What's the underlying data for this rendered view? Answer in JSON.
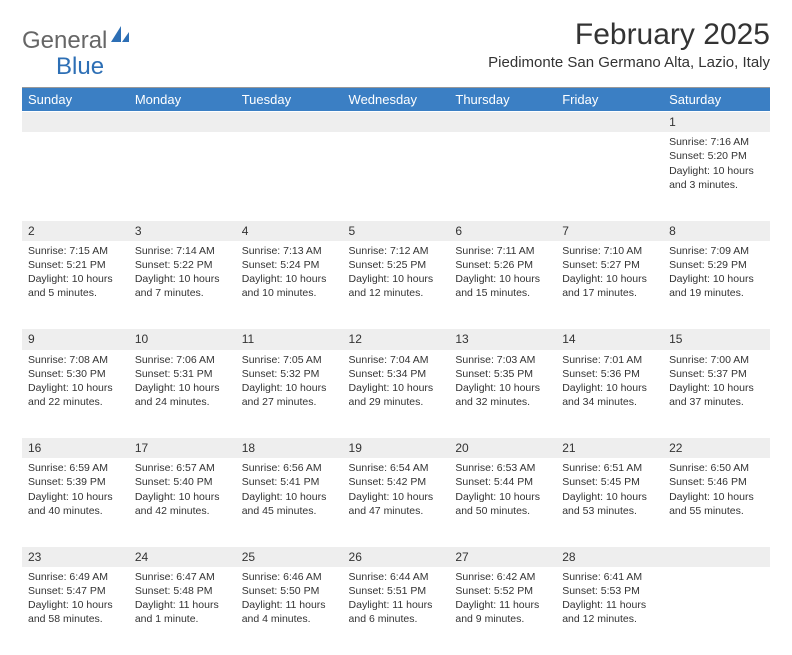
{
  "logo": {
    "text1": "General",
    "text2": "Blue"
  },
  "title": "February 2025",
  "location": "Piedimonte San Germano Alta, Lazio, Italy",
  "colors": {
    "header_bg": "#3b7fc4",
    "header_text": "#ffffff",
    "daynum_bg": "#eeeeee",
    "text": "#333333",
    "logo_gray": "#666666",
    "logo_blue": "#2d6fb5"
  },
  "weekdays": [
    "Sunday",
    "Monday",
    "Tuesday",
    "Wednesday",
    "Thursday",
    "Friday",
    "Saturday"
  ],
  "weeks": [
    [
      null,
      null,
      null,
      null,
      null,
      null,
      {
        "n": "1",
        "sr": "Sunrise: 7:16 AM",
        "ss": "Sunset: 5:20 PM",
        "d1": "Daylight: 10 hours",
        "d2": "and 3 minutes."
      }
    ],
    [
      {
        "n": "2",
        "sr": "Sunrise: 7:15 AM",
        "ss": "Sunset: 5:21 PM",
        "d1": "Daylight: 10 hours",
        "d2": "and 5 minutes."
      },
      {
        "n": "3",
        "sr": "Sunrise: 7:14 AM",
        "ss": "Sunset: 5:22 PM",
        "d1": "Daylight: 10 hours",
        "d2": "and 7 minutes."
      },
      {
        "n": "4",
        "sr": "Sunrise: 7:13 AM",
        "ss": "Sunset: 5:24 PM",
        "d1": "Daylight: 10 hours",
        "d2": "and 10 minutes."
      },
      {
        "n": "5",
        "sr": "Sunrise: 7:12 AM",
        "ss": "Sunset: 5:25 PM",
        "d1": "Daylight: 10 hours",
        "d2": "and 12 minutes."
      },
      {
        "n": "6",
        "sr": "Sunrise: 7:11 AM",
        "ss": "Sunset: 5:26 PM",
        "d1": "Daylight: 10 hours",
        "d2": "and 15 minutes."
      },
      {
        "n": "7",
        "sr": "Sunrise: 7:10 AM",
        "ss": "Sunset: 5:27 PM",
        "d1": "Daylight: 10 hours",
        "d2": "and 17 minutes."
      },
      {
        "n": "8",
        "sr": "Sunrise: 7:09 AM",
        "ss": "Sunset: 5:29 PM",
        "d1": "Daylight: 10 hours",
        "d2": "and 19 minutes."
      }
    ],
    [
      {
        "n": "9",
        "sr": "Sunrise: 7:08 AM",
        "ss": "Sunset: 5:30 PM",
        "d1": "Daylight: 10 hours",
        "d2": "and 22 minutes."
      },
      {
        "n": "10",
        "sr": "Sunrise: 7:06 AM",
        "ss": "Sunset: 5:31 PM",
        "d1": "Daylight: 10 hours",
        "d2": "and 24 minutes."
      },
      {
        "n": "11",
        "sr": "Sunrise: 7:05 AM",
        "ss": "Sunset: 5:32 PM",
        "d1": "Daylight: 10 hours",
        "d2": "and 27 minutes."
      },
      {
        "n": "12",
        "sr": "Sunrise: 7:04 AM",
        "ss": "Sunset: 5:34 PM",
        "d1": "Daylight: 10 hours",
        "d2": "and 29 minutes."
      },
      {
        "n": "13",
        "sr": "Sunrise: 7:03 AM",
        "ss": "Sunset: 5:35 PM",
        "d1": "Daylight: 10 hours",
        "d2": "and 32 minutes."
      },
      {
        "n": "14",
        "sr": "Sunrise: 7:01 AM",
        "ss": "Sunset: 5:36 PM",
        "d1": "Daylight: 10 hours",
        "d2": "and 34 minutes."
      },
      {
        "n": "15",
        "sr": "Sunrise: 7:00 AM",
        "ss": "Sunset: 5:37 PM",
        "d1": "Daylight: 10 hours",
        "d2": "and 37 minutes."
      }
    ],
    [
      {
        "n": "16",
        "sr": "Sunrise: 6:59 AM",
        "ss": "Sunset: 5:39 PM",
        "d1": "Daylight: 10 hours",
        "d2": "and 40 minutes."
      },
      {
        "n": "17",
        "sr": "Sunrise: 6:57 AM",
        "ss": "Sunset: 5:40 PM",
        "d1": "Daylight: 10 hours",
        "d2": "and 42 minutes."
      },
      {
        "n": "18",
        "sr": "Sunrise: 6:56 AM",
        "ss": "Sunset: 5:41 PM",
        "d1": "Daylight: 10 hours",
        "d2": "and 45 minutes."
      },
      {
        "n": "19",
        "sr": "Sunrise: 6:54 AM",
        "ss": "Sunset: 5:42 PM",
        "d1": "Daylight: 10 hours",
        "d2": "and 47 minutes."
      },
      {
        "n": "20",
        "sr": "Sunrise: 6:53 AM",
        "ss": "Sunset: 5:44 PM",
        "d1": "Daylight: 10 hours",
        "d2": "and 50 minutes."
      },
      {
        "n": "21",
        "sr": "Sunrise: 6:51 AM",
        "ss": "Sunset: 5:45 PM",
        "d1": "Daylight: 10 hours",
        "d2": "and 53 minutes."
      },
      {
        "n": "22",
        "sr": "Sunrise: 6:50 AM",
        "ss": "Sunset: 5:46 PM",
        "d1": "Daylight: 10 hours",
        "d2": "and 55 minutes."
      }
    ],
    [
      {
        "n": "23",
        "sr": "Sunrise: 6:49 AM",
        "ss": "Sunset: 5:47 PM",
        "d1": "Daylight: 10 hours",
        "d2": "and 58 minutes."
      },
      {
        "n": "24",
        "sr": "Sunrise: 6:47 AM",
        "ss": "Sunset: 5:48 PM",
        "d1": "Daylight: 11 hours",
        "d2": "and 1 minute."
      },
      {
        "n": "25",
        "sr": "Sunrise: 6:46 AM",
        "ss": "Sunset: 5:50 PM",
        "d1": "Daylight: 11 hours",
        "d2": "and 4 minutes."
      },
      {
        "n": "26",
        "sr": "Sunrise: 6:44 AM",
        "ss": "Sunset: 5:51 PM",
        "d1": "Daylight: 11 hours",
        "d2": "and 6 minutes."
      },
      {
        "n": "27",
        "sr": "Sunrise: 6:42 AM",
        "ss": "Sunset: 5:52 PM",
        "d1": "Daylight: 11 hours",
        "d2": "and 9 minutes."
      },
      {
        "n": "28",
        "sr": "Sunrise: 6:41 AM",
        "ss": "Sunset: 5:53 PM",
        "d1": "Daylight: 11 hours",
        "d2": "and 12 minutes."
      },
      null
    ]
  ]
}
